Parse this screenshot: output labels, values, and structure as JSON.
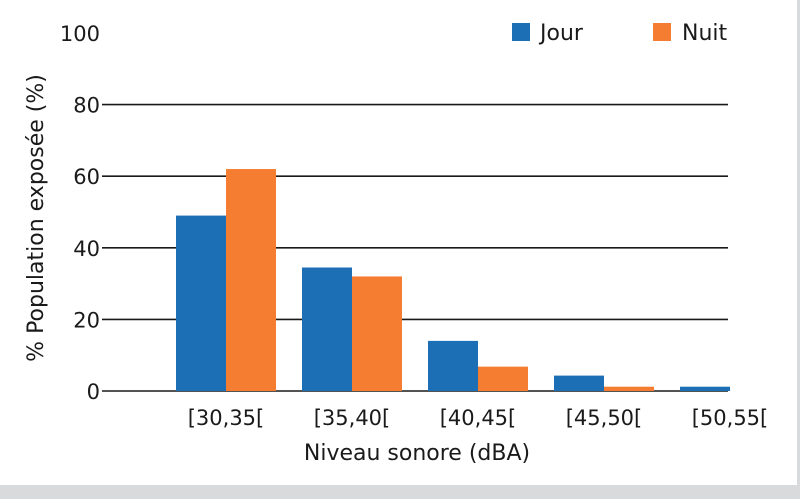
{
  "chart_data": {
    "type": "bar",
    "title": "",
    "xlabel": "Niveau sonore (dBA)",
    "ylabel": "% Population exposée (%)",
    "categories": [
      "[30,35[",
      "[35,40[",
      "[40,45[",
      "[45,50[",
      "[50,55["
    ],
    "series": [
      {
        "name": "Jour",
        "color": "#1d6fb5",
        "values": [
          49,
          34.5,
          14,
          4.3,
          1.2
        ]
      },
      {
        "name": "Nuit",
        "color": "#f47d31",
        "values": [
          62,
          32,
          6.8,
          1.2,
          0
        ]
      }
    ],
    "ylim": [
      0,
      100
    ],
    "yticks": [
      0,
      20,
      40,
      60,
      80,
      100
    ],
    "grid": true,
    "legend": "top-right"
  }
}
